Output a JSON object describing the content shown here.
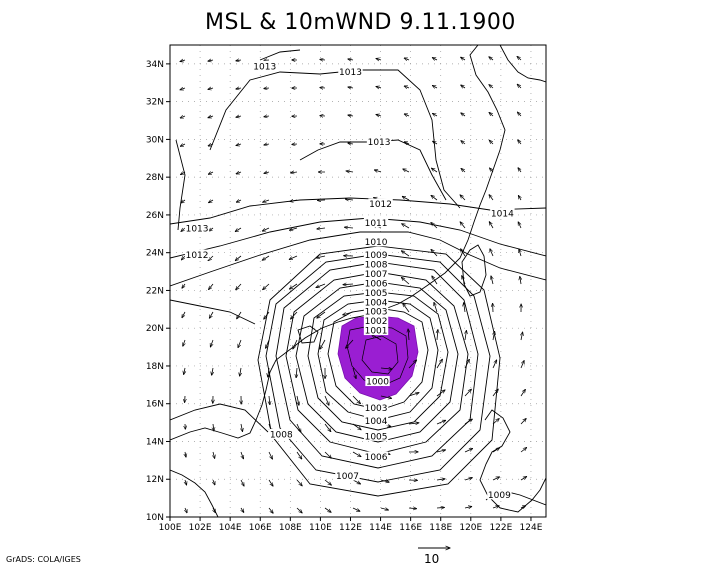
{
  "title": "MSL & 10mWND 9.11.1900",
  "credit": "GrADS: COLA/IGES",
  "scale_label": "10",
  "colors": {
    "low_fill": "#9a1ed2",
    "contour": "#000000",
    "grid": "#9a9a9a"
  },
  "map": {
    "lon_range": [
      100,
      125
    ],
    "lat_range": [
      10,
      35
    ],
    "lon_ticks": [
      "100E",
      "102E",
      "104E",
      "106E",
      "108E",
      "110E",
      "112E",
      "114E",
      "116E",
      "118E",
      "120E",
      "122E",
      "124E"
    ],
    "lat_ticks": [
      "10N",
      "12N",
      "14N",
      "16N",
      "18N",
      "20N",
      "22N",
      "24N",
      "26N",
      "28N",
      "30N",
      "32N",
      "34N"
    ]
  },
  "contour_labels": [
    {
      "text": "1013",
      "lon": 106.3,
      "lat": 33.9
    },
    {
      "text": "1013",
      "lon": 112.0,
      "lat": 33.6
    },
    {
      "text": "1013",
      "lon": 113.9,
      "lat": 29.9
    },
    {
      "text": "1013",
      "lon": 101.8,
      "lat": 25.3
    },
    {
      "text": "1012",
      "lon": 101.8,
      "lat": 23.9
    },
    {
      "text": "1012",
      "lon": 114.0,
      "lat": 26.6
    },
    {
      "text": "1014",
      "lon": 122.1,
      "lat": 26.1
    },
    {
      "text": "1011",
      "lon": 113.7,
      "lat": 25.6
    },
    {
      "text": "1010",
      "lon": 113.7,
      "lat": 24.6
    },
    {
      "text": "1009",
      "lon": 113.7,
      "lat": 23.9
    },
    {
      "text": "1008",
      "lon": 113.7,
      "lat": 23.4
    },
    {
      "text": "1007",
      "lon": 113.7,
      "lat": 22.9
    },
    {
      "text": "1006",
      "lon": 113.7,
      "lat": 22.4
    },
    {
      "text": "1005",
      "lon": 113.7,
      "lat": 21.9
    },
    {
      "text": "1004",
      "lon": 113.7,
      "lat": 21.4
    },
    {
      "text": "1003",
      "lon": 113.7,
      "lat": 20.9
    },
    {
      "text": "1002",
      "lon": 113.7,
      "lat": 20.4
    },
    {
      "text": "1001",
      "lon": 113.7,
      "lat": 19.9
    },
    {
      "text": "1000",
      "lon": 113.8,
      "lat": 17.2
    },
    {
      "text": "1003",
      "lon": 113.7,
      "lat": 15.8
    },
    {
      "text": "1004",
      "lon": 113.7,
      "lat": 15.1
    },
    {
      "text": "1005",
      "lon": 113.7,
      "lat": 14.3
    },
    {
      "text": "1006",
      "lon": 113.7,
      "lat": 13.2
    },
    {
      "text": "1007",
      "lon": 111.8,
      "lat": 12.2
    },
    {
      "text": "1008",
      "lon": 107.4,
      "lat": 14.4
    },
    {
      "text": "1009",
      "lon": 121.9,
      "lat": 11.2
    }
  ]
}
